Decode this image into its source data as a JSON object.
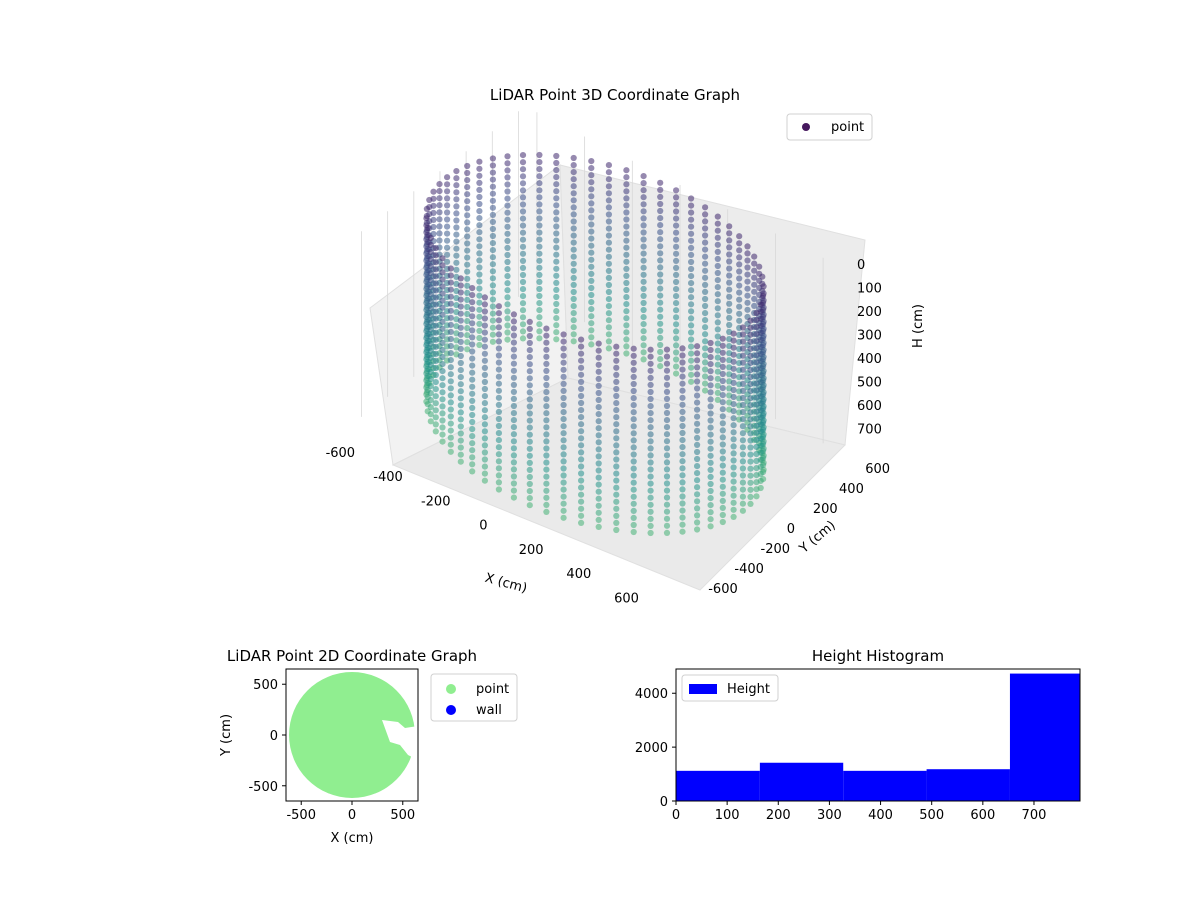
{
  "chart_data": [
    {
      "type": "scatter",
      "projection": "3d",
      "title": "LiDAR Point 3D Coordinate Graph",
      "xlabel": "X (cm)",
      "ylabel": "Y (cm)",
      "zlabel": "H (cm)",
      "xlim": [
        -650,
        650
      ],
      "ylim": [
        -650,
        650
      ],
      "zlim": [
        0,
        790
      ],
      "zaxis_inverted": true,
      "xticks": [
        -600,
        -400,
        -200,
        0,
        200,
        400,
        600
      ],
      "yticks": [
        -600,
        -400,
        -200,
        0,
        200,
        400,
        600
      ],
      "zticks": [
        0,
        100,
        200,
        300,
        400,
        500,
        600,
        700
      ],
      "colormap": [
        "#440154",
        "#3b528b",
        "#21918c",
        "#5ec962"
      ],
      "legend": {
        "entries": [
          {
            "label": "point",
            "color": "#46195e"
          }
        ],
        "placement": "top-right"
      },
      "series": [
        {
          "name": "point",
          "shape": "cylinder",
          "radius": 620,
          "height_range": [
            0,
            790
          ],
          "description_points": {
            "x": [
              -620,
              0,
              620,
              0
            ],
            "y": [
              0,
              620,
              0,
              -620
            ],
            "h": [
              0,
              0,
              0,
              0
            ]
          }
        }
      ],
      "grid": true
    },
    {
      "type": "scatter",
      "title": "LiDAR Point 2D Coordinate Graph",
      "xlabel": "X (cm)",
      "ylabel": "Y (cm)",
      "xlim": [
        -650,
        650
      ],
      "ylim": [
        -650,
        650
      ],
      "xticks": [
        -500,
        0,
        500
      ],
      "yticks": [
        500,
        0,
        -500
      ],
      "legend": {
        "entries": [
          {
            "label": "point",
            "color": "#90ee90"
          },
          {
            "label": "wall",
            "color": "#0000ff"
          }
        ],
        "placement": "outside-right"
      },
      "series": [
        {
          "name": "point",
          "color": "#90ee90",
          "shape": "disc",
          "center": [
            0,
            0
          ],
          "radius": 620
        }
      ]
    },
    {
      "type": "bar",
      "title": "Height Histogram",
      "xlim": [
        0,
        790
      ],
      "ylim": [
        0,
        4900
      ],
      "xticks": [
        0,
        100,
        200,
        300,
        400,
        500,
        600,
        700
      ],
      "yticks": [
        0,
        2000,
        4000
      ],
      "bin_edges": [
        0,
        164,
        327,
        490,
        653,
        790
      ],
      "values": [
        1120,
        1420,
        1120,
        1180,
        4730
      ],
      "color": "#0000ff",
      "legend": {
        "entries": [
          {
            "label": "Height",
            "color": "#0000ff"
          }
        ],
        "placement": "top-left"
      }
    }
  ]
}
